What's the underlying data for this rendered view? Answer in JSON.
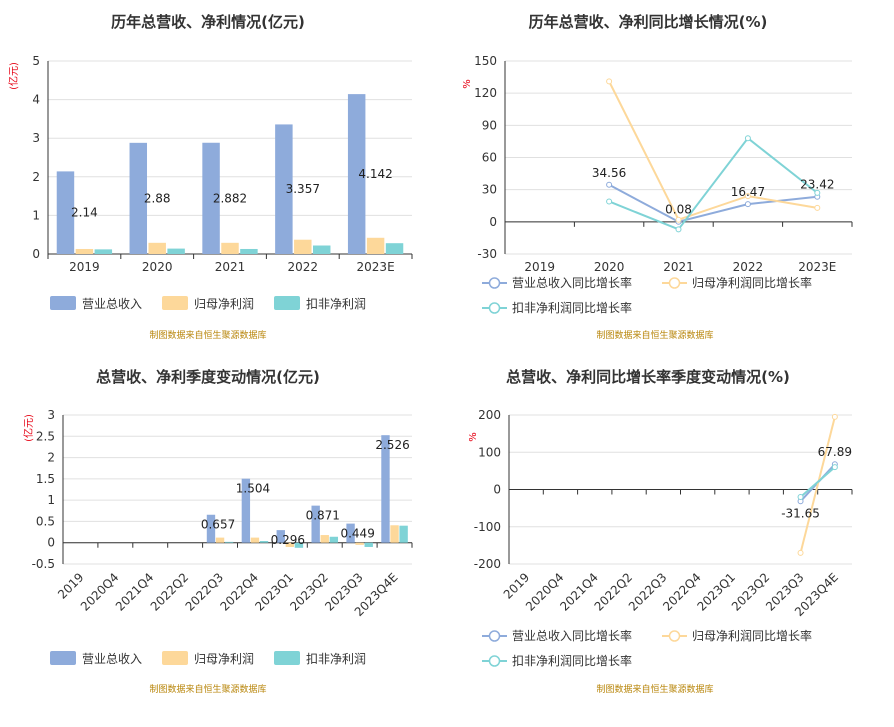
{
  "colors": {
    "revenue": "#8eabdb",
    "net_profit": "#fdd89a",
    "deducted_profit": "#7fd3d6",
    "axis": "#333333",
    "grid": "#e0e0e0",
    "unit_label": "#e60012",
    "source": "#b8860b"
  },
  "source_text": "制图数据来自恒生聚源数据库",
  "chart_data": [
    {
      "id": "annual_amount",
      "type": "bar",
      "title": "历年总营收、净利情况(亿元)",
      "ylabel": "(亿元)",
      "ylim": [
        0,
        5
      ],
      "yticks": [
        0,
        1,
        2,
        3,
        4,
        5
      ],
      "categories": [
        "2019",
        "2020",
        "2021",
        "2022",
        "2023E"
      ],
      "series": [
        {
          "name": "营业总收入",
          "values": [
            2.14,
            2.88,
            2.882,
            3.357,
            4.142
          ]
        },
        {
          "name": "归母净利润",
          "values": [
            0.13,
            0.29,
            0.29,
            0.37,
            0.42
          ]
        },
        {
          "name": "扣非净利润",
          "values": [
            0.12,
            0.14,
            0.13,
            0.22,
            0.28
          ]
        }
      ],
      "data_labels": [
        "2.14",
        "2.88",
        "2.882",
        "3.357",
        "4.142"
      ],
      "legend_position": "bottom"
    },
    {
      "id": "annual_growth",
      "type": "line",
      "title": "历年总营收、净利同比增长情况(%)",
      "ylabel": "%",
      "ylim": [
        -30,
        150
      ],
      "yticks": [
        -30,
        0,
        30,
        60,
        90,
        120,
        150
      ],
      "categories": [
        "2019",
        "2020",
        "2021",
        "2022",
        "2023E"
      ],
      "series": [
        {
          "name": "营业总收入同比增长率",
          "values": [
            null,
            34.56,
            0.08,
            16.47,
            23.42
          ]
        },
        {
          "name": "归母净利润同比增长率",
          "values": [
            null,
            131,
            2,
            24,
            13
          ]
        },
        {
          "name": "扣非净利润同比增长率",
          "values": [
            null,
            19,
            -7,
            78,
            27
          ]
        }
      ],
      "data_labels": [
        null,
        "34.56",
        "0.08",
        "16.47",
        "23.42"
      ],
      "legend_position": "bottom"
    },
    {
      "id": "quarterly_amount",
      "type": "bar",
      "title": "总营收、净利季度变动情况(亿元)",
      "ylabel": "(亿元)",
      "ylim": [
        -0.5,
        3
      ],
      "yticks": [
        -0.5,
        0,
        0.5,
        1,
        1.5,
        2,
        2.5,
        3
      ],
      "categories": [
        "2019",
        "2020Q4",
        "2021Q4",
        "2022Q2",
        "2022Q3",
        "2022Q4",
        "2023Q1",
        "2023Q2",
        "2023Q3",
        "2023Q4E"
      ],
      "series": [
        {
          "name": "营业总收入",
          "values": [
            null,
            null,
            null,
            null,
            0.657,
            1.504,
            0.296,
            0.871,
            0.449,
            2.526
          ]
        },
        {
          "name": "归母净利润",
          "values": [
            null,
            null,
            null,
            null,
            0.12,
            0.12,
            -0.1,
            0.18,
            -0.05,
            0.41
          ]
        },
        {
          "name": "扣非净利润",
          "values": [
            null,
            null,
            null,
            null,
            0.02,
            0.04,
            -0.12,
            0.14,
            -0.1,
            0.4
          ]
        }
      ],
      "data_labels": [
        null,
        null,
        null,
        null,
        "0.657",
        "1.504",
        "0.296",
        "0.871",
        "0.449",
        "2.526"
      ],
      "legend_position": "bottom"
    },
    {
      "id": "quarterly_growth",
      "type": "line",
      "title": "总营收、净利同比增长率季度变动情况(%)",
      "ylabel": "%",
      "ylim": [
        -200,
        200
      ],
      "yticks": [
        -200,
        -100,
        0,
        100,
        200
      ],
      "categories": [
        "2019",
        "2020Q4",
        "2021Q4",
        "2022Q2",
        "2022Q3",
        "2022Q4",
        "2023Q1",
        "2023Q2",
        "2023Q3",
        "2023Q4E"
      ],
      "series": [
        {
          "name": "营业总收入同比增长率",
          "values": [
            null,
            null,
            null,
            null,
            null,
            null,
            null,
            null,
            -31.65,
            67.89
          ]
        },
        {
          "name": "归母净利润同比增长率",
          "values": [
            null,
            null,
            null,
            null,
            null,
            null,
            null,
            null,
            -170,
            195
          ]
        },
        {
          "name": "扣非净利润同比增长率",
          "values": [
            null,
            null,
            null,
            null,
            null,
            null,
            null,
            null,
            -20,
            60
          ]
        }
      ],
      "data_labels": [
        null,
        null,
        null,
        null,
        null,
        null,
        null,
        null,
        "-31.65",
        "67.89"
      ],
      "legend_position": "bottom"
    }
  ]
}
